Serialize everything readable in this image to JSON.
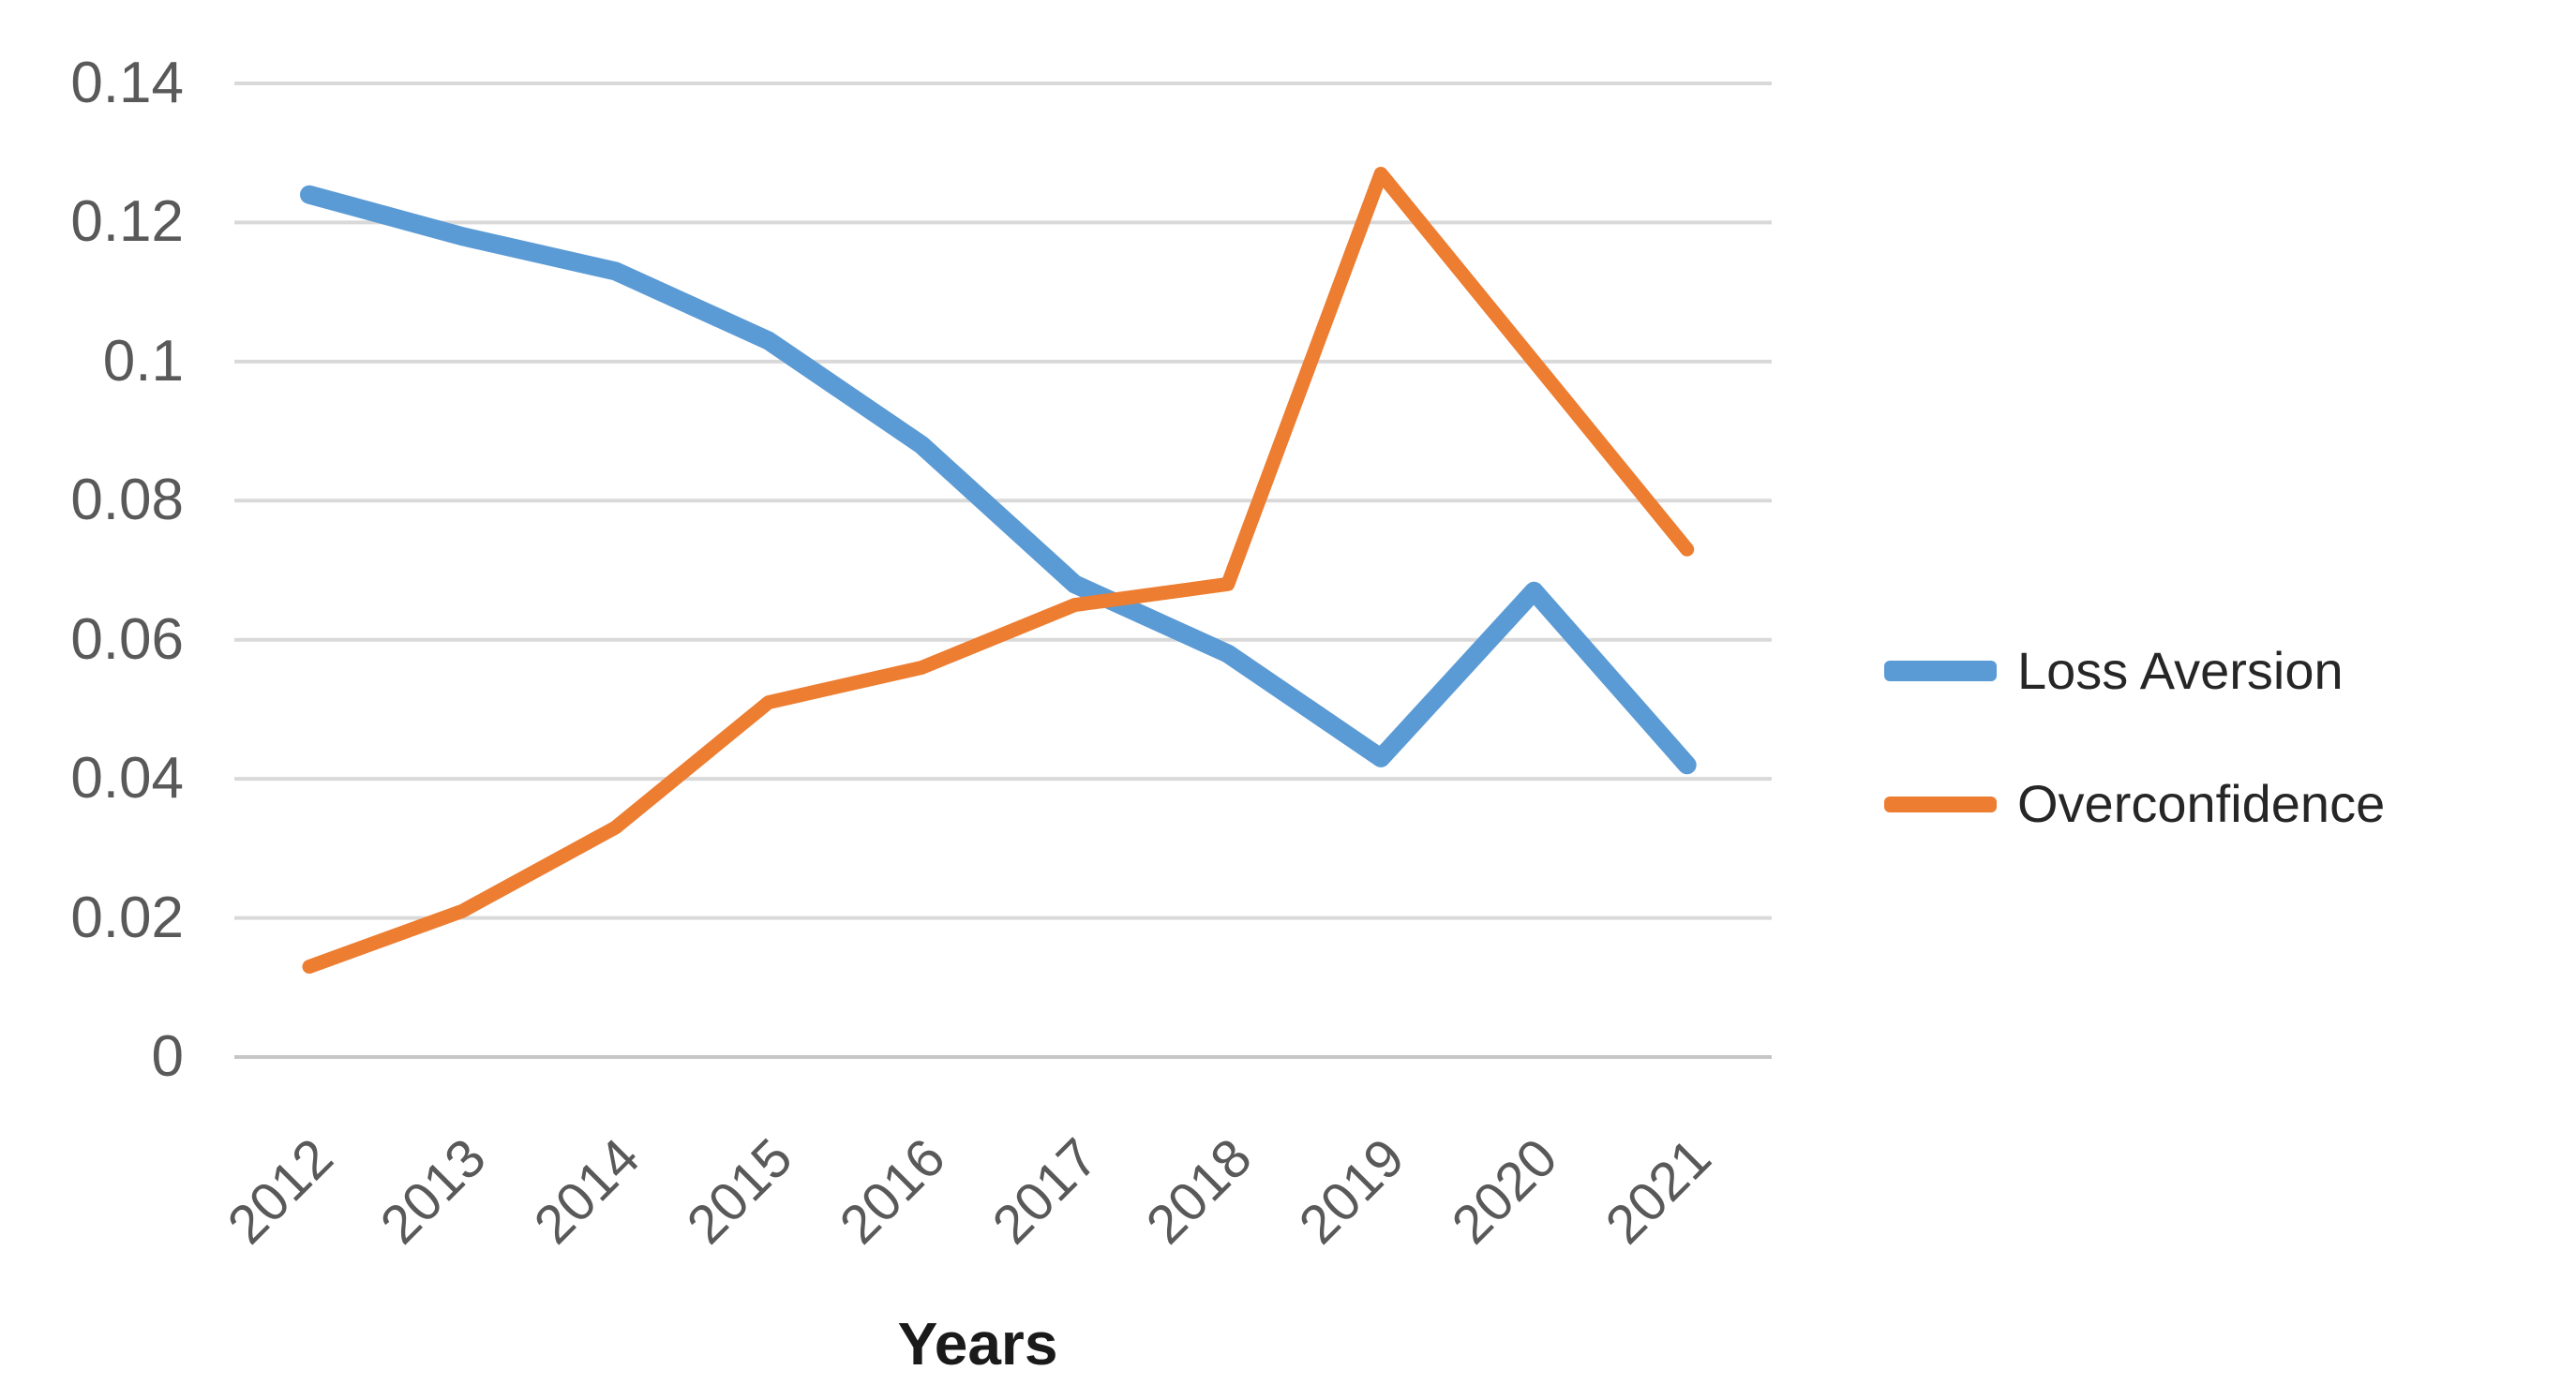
{
  "chart_data": {
    "type": "line",
    "title": "",
    "xlabel": "Years",
    "ylabel": "",
    "categories": [
      "2012",
      "2013",
      "2014",
      "2015",
      "2016",
      "2017",
      "2018",
      "2019",
      "2020",
      "2021"
    ],
    "series": [
      {
        "name": "Loss Aversion",
        "color": "#5B9BD5",
        "stroke_width": 20,
        "values": [
          0.124,
          0.118,
          0.113,
          0.103,
          0.088,
          0.068,
          0.058,
          0.043,
          0.067,
          0.042
        ]
      },
      {
        "name": "Overconfidence",
        "color": "#ED7D31",
        "stroke_width": 15,
        "values": [
          0.013,
          0.021,
          0.033,
          0.051,
          0.056,
          0.065,
          0.068,
          0.127,
          0.1,
          0.073
        ]
      }
    ],
    "y_ticks": [
      {
        "label": "0.14",
        "value": 0.14
      },
      {
        "label": "0.12",
        "value": 0.12
      },
      {
        "label": "0.1",
        "value": 0.1
      },
      {
        "label": "0.08",
        "value": 0.08
      },
      {
        "label": "0.06",
        "value": 0.06
      },
      {
        "label": "0.04",
        "value": 0.04
      },
      {
        "label": "0.02",
        "value": 0.02
      },
      {
        "label": "0",
        "value": 0
      }
    ],
    "ylim": [
      0,
      0.14
    ],
    "grid": "horizontal",
    "legend_position": "right-middle"
  },
  "colors": {
    "background": "#FFFFFF",
    "gridline": "#D9D9D9",
    "axis_line": "#C6C6C6",
    "tick_label": "#595959",
    "axis_title": "#1A1A1A",
    "legend_text": "#262626"
  }
}
